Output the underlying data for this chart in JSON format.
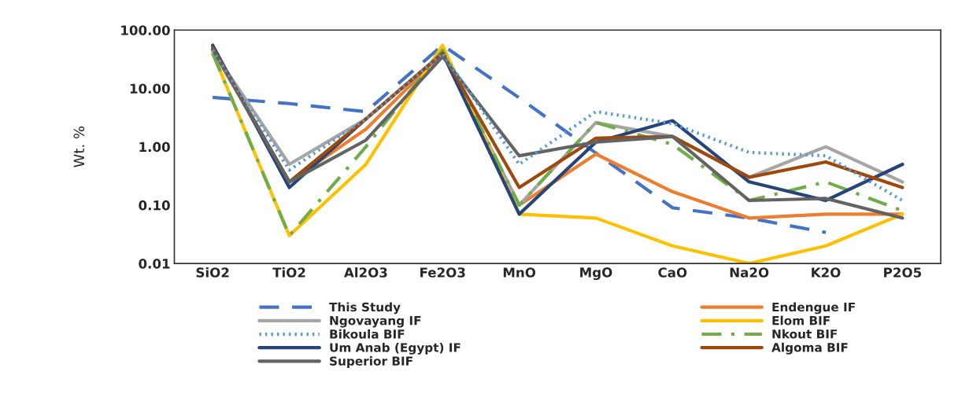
{
  "chart_data": {
    "type": "line",
    "ylabel": "Wt. %",
    "log": "y",
    "ylim": [
      0.01,
      100
    ],
    "yticks": [
      {
        "value": 0.01,
        "label": "0.01"
      },
      {
        "value": 0.1,
        "label": "0.10"
      },
      {
        "value": 1,
        "label": "1.00"
      },
      {
        "value": 10,
        "label": "10.00"
      },
      {
        "value": 100,
        "label": "100.00"
      }
    ],
    "grid": false,
    "legend": "bottom",
    "marker": "none",
    "categories": [
      "SiO2",
      "TiO2",
      "Al2O3",
      "Fe2O3",
      "MnO",
      "MgO",
      "CaO",
      "Na2O",
      "K2O",
      "P2O5"
    ],
    "series": [
      {
        "name": "This Study",
        "color": "#4472c4",
        "line_style": "dashed",
        "values": [
          7,
          5.5,
          4,
          55,
          6.9,
          0.78,
          0.09,
          0.06,
          0.034,
          null
        ]
      },
      {
        "name": "Endengue IF",
        "color": "#ed7d31",
        "line_style": "solid",
        "values": [
          45,
          0.25,
          2,
          40,
          0.1,
          0.75,
          0.17,
          0.06,
          0.07,
          0.07
        ]
      },
      {
        "name": "Ngovayang IF",
        "color": "#a5a5a5",
        "line_style": "solid",
        "values": [
          45,
          0.5,
          3,
          40,
          0.1,
          2.6,
          1.5,
          0.3,
          1.0,
          0.25
        ]
      },
      {
        "name": "Elom BIF",
        "color": "#ffc000",
        "line_style": "solid",
        "values": [
          40,
          0.03,
          0.5,
          55,
          0.07,
          0.06,
          0.02,
          0.01,
          0.02,
          0.07
        ]
      },
      {
        "name": "Bikoula BIF",
        "color": "#5b9bd5",
        "line_style": "dotted",
        "values": [
          45,
          0.4,
          3,
          40,
          0.5,
          4,
          2.5,
          0.8,
          0.7,
          0.12
        ]
      },
      {
        "name": "Nkout BIF",
        "color": "#70ad47",
        "line_style": "dashdot",
        "values": [
          40,
          0.03,
          1.0,
          45,
          0.1,
          2.6,
          1.1,
          0.12,
          0.25,
          0.08
        ]
      },
      {
        "name": "Um Anab (Egypt) IF",
        "color": "#264478",
        "line_style": "solid",
        "values": [
          55,
          0.2,
          3,
          40,
          0.07,
          1.2,
          2.8,
          0.25,
          0.12,
          0.5
        ]
      },
      {
        "name": "Algoma BIF",
        "color": "#9e480e",
        "line_style": "solid",
        "values": [
          50,
          0.25,
          3,
          40,
          0.2,
          1.4,
          1.5,
          0.3,
          0.55,
          0.2
        ]
      },
      {
        "name": "Superior BIF",
        "color": "#636363",
        "line_style": "solid",
        "values": [
          47,
          0.25,
          1.3,
          35,
          0.7,
          1.2,
          1.5,
          0.12,
          0.13,
          0.06
        ]
      }
    ]
  }
}
